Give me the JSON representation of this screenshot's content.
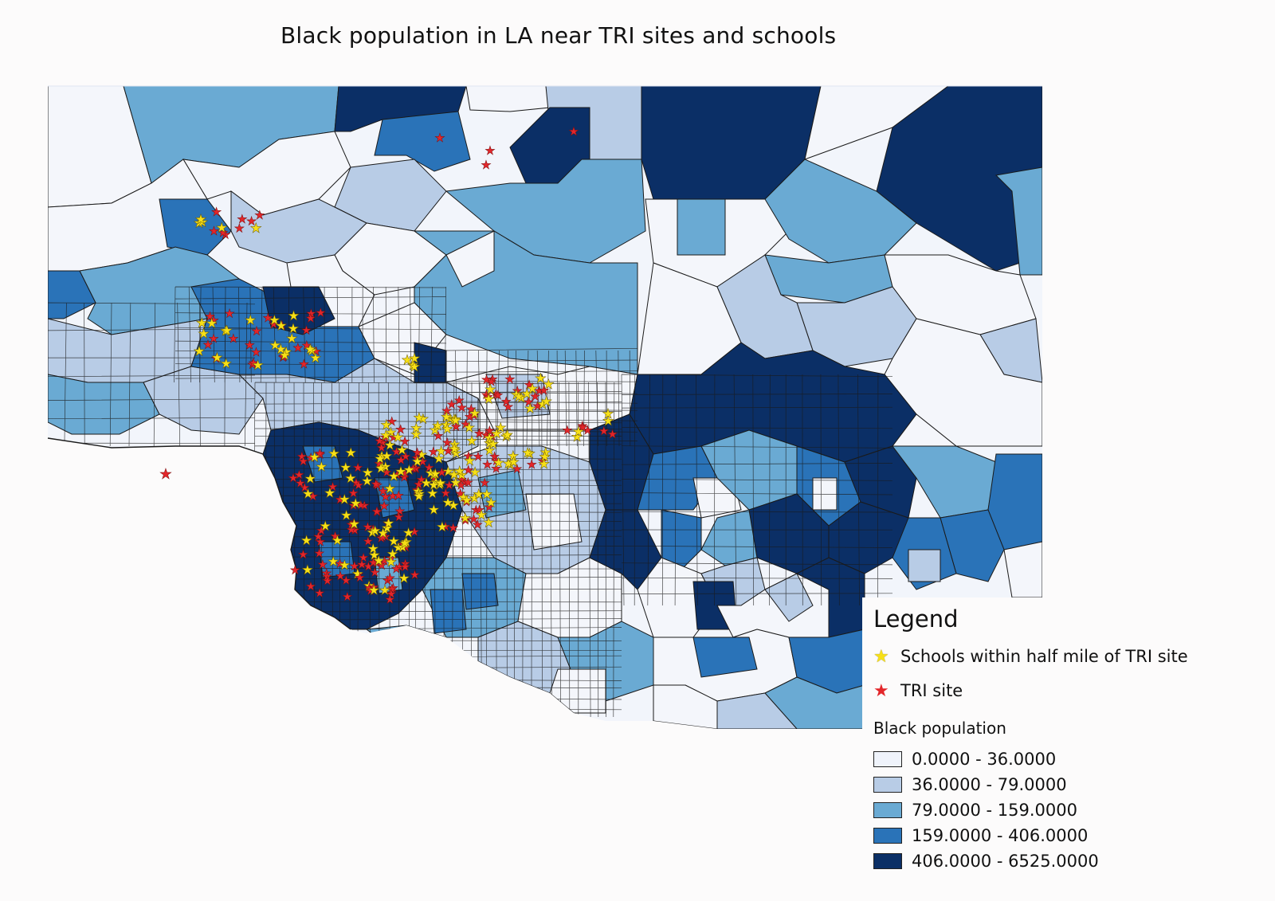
{
  "title": "Black population in LA near TRI sites and schools",
  "legend": {
    "heading": "Legend",
    "schools_label": "Schools within half mile of TRI site",
    "schools_color": "#f7e017",
    "tri_label": "TRI site",
    "tri_color": "#e3262a",
    "classes_title": "Black population",
    "classes": [
      {
        "label": "0.0000 - 36.0000",
        "color": "#eff3fb"
      },
      {
        "label": "36.0000 - 79.0000",
        "color": "#b8cce6"
      },
      {
        "label": "79.0000 - 159.0000",
        "color": "#6aaad3"
      },
      {
        "label": "159.0000 - 406.0000",
        "color": "#2a73b8"
      },
      {
        "label": "406.0000 - 6525.0000",
        "color": "#0b2f66"
      }
    ]
  }
}
